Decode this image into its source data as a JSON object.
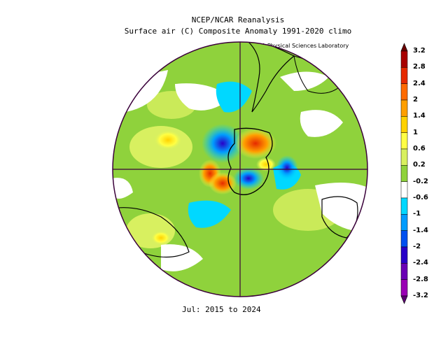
{
  "header": {
    "title": "NCEP/NCAR Reanalysis",
    "subtitle": "Surface air (C) Composite Anomaly 1991-2020 climo",
    "credit": "NOAA Physical Sciences Laboratory"
  },
  "footer": {
    "period": "Jul: 2015 to 2024"
  },
  "colorbar": {
    "labels": [
      "3.2",
      "2.8",
      "2.4",
      "2",
      "1.4",
      "1",
      "0.6",
      "0.2",
      "-0.2",
      "-0.6",
      "-1",
      "-1.4",
      "-2",
      "-2.4",
      "-2.8",
      "-3.2"
    ],
    "colors": [
      "#6a0000",
      "#a80000",
      "#e62a00",
      "#ff6a00",
      "#ff9f00",
      "#ffd200",
      "#ffff44",
      "#d8f060",
      "#8fd23c",
      "#ffffff",
      "#00d8ff",
      "#009cff",
      "#0050f0",
      "#2800c8",
      "#6a00b4",
      "#9a00b4",
      "#5a0070"
    ]
  },
  "map": {
    "projection": "south-polar-stereographic",
    "land_color": "#8fd23c"
  }
}
